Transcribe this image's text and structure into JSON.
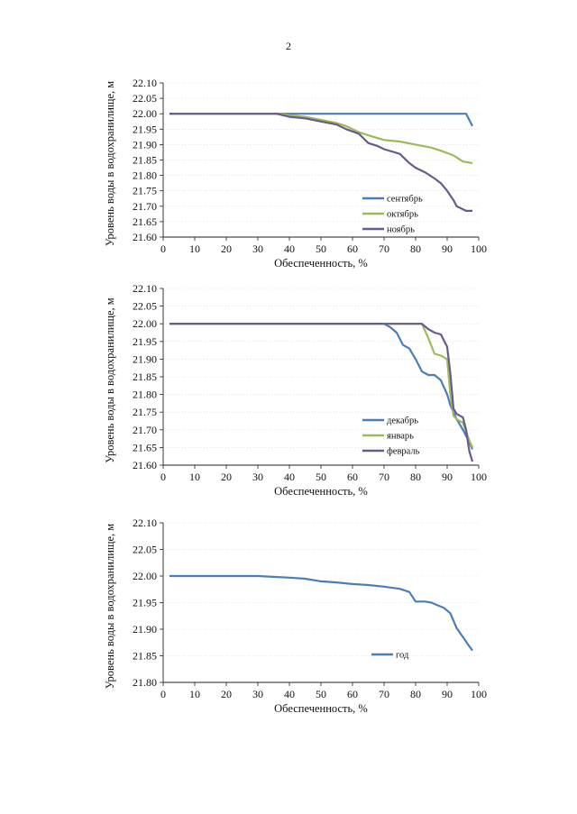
{
  "page": {
    "number": "2"
  },
  "chart_data": [
    {
      "type": "line",
      "title": "",
      "xlabel": "Обеспеченность, %",
      "ylabel": "Уровень воды в водохранилище, м",
      "xlim": [
        0,
        100
      ],
      "ylim": [
        21.6,
        22.1
      ],
      "xticks": [
        "0",
        "10",
        "20",
        "30",
        "40",
        "50",
        "60",
        "70",
        "80",
        "90",
        "100"
      ],
      "yticks": [
        "21.60",
        "21.65",
        "21.70",
        "21.75",
        "21.80",
        "21.85",
        "21.90",
        "21.95",
        "22.00",
        "22.05",
        "22.10"
      ],
      "grid": true,
      "legend_position": "lower-right",
      "series": [
        {
          "name": "сентябрь",
          "color": "#4a7ebb",
          "points": [
            [
              2,
              22.0
            ],
            [
              20,
              22.0
            ],
            [
              40,
              22.0
            ],
            [
              60,
              22.0
            ],
            [
              80,
              22.0
            ],
            [
              96,
              22.0
            ],
            [
              98,
              21.96
            ]
          ]
        },
        {
          "name": "октябрь",
          "color": "#9bbb59",
          "points": [
            [
              2,
              22.0
            ],
            [
              36,
              22.0
            ],
            [
              40,
              21.995
            ],
            [
              45,
              21.99
            ],
            [
              50,
              21.98
            ],
            [
              55,
              21.97
            ],
            [
              58,
              21.96
            ],
            [
              62,
              21.94
            ],
            [
              65,
              21.93
            ],
            [
              70,
              21.915
            ],
            [
              75,
              21.91
            ],
            [
              80,
              21.9
            ],
            [
              85,
              21.89
            ],
            [
              88,
              21.88
            ],
            [
              92,
              21.865
            ],
            [
              95,
              21.845
            ],
            [
              98,
              21.84
            ]
          ]
        },
        {
          "name": "ноябрь",
          "color": "#6a5a8c",
          "points": [
            [
              2,
              22.0
            ],
            [
              36,
              22.0
            ],
            [
              40,
              21.99
            ],
            [
              45,
              21.985
            ],
            [
              50,
              21.975
            ],
            [
              55,
              21.965
            ],
            [
              58,
              21.95
            ],
            [
              62,
              21.935
            ],
            [
              65,
              21.905
            ],
            [
              68,
              21.895
            ],
            [
              70,
              21.885
            ],
            [
              75,
              21.87
            ],
            [
              78,
              21.84
            ],
            [
              80,
              21.825
            ],
            [
              83,
              21.81
            ],
            [
              86,
              21.79
            ],
            [
              88,
              21.775
            ],
            [
              90,
              21.75
            ],
            [
              92,
              21.72
            ],
            [
              93,
              21.7
            ],
            [
              96,
              21.685
            ],
            [
              98,
              21.685
            ]
          ]
        }
      ]
    },
    {
      "type": "line",
      "title": "",
      "xlabel": "Обеспеченность, %",
      "ylabel": "Уровень воды в водохранилище, м",
      "xlim": [
        0,
        100
      ],
      "ylim": [
        21.6,
        22.1
      ],
      "xticks": [
        "0",
        "10",
        "20",
        "30",
        "40",
        "50",
        "60",
        "70",
        "80",
        "90",
        "100"
      ],
      "yticks": [
        "21.60",
        "21.65",
        "21.70",
        "21.75",
        "21.80",
        "21.85",
        "21.90",
        "21.95",
        "22.00",
        "22.05",
        "22.10"
      ],
      "grid": true,
      "legend_position": "lower-right",
      "series": [
        {
          "name": "декабрь",
          "color": "#4a7ebb",
          "points": [
            [
              2,
              22.0
            ],
            [
              70,
              22.0
            ],
            [
              72,
              21.99
            ],
            [
              74,
              21.975
            ],
            [
              76,
              21.94
            ],
            [
              78,
              21.93
            ],
            [
              80,
              21.9
            ],
            [
              82,
              21.865
            ],
            [
              84,
              21.855
            ],
            [
              86,
              21.855
            ],
            [
              88,
              21.84
            ],
            [
              90,
              21.8
            ],
            [
              91,
              21.77
            ],
            [
              93,
              21.73
            ],
            [
              95,
              21.7
            ],
            [
              97,
              21.665
            ],
            [
              98,
              21.645
            ]
          ]
        },
        {
          "name": "январь",
          "color": "#9bbb59",
          "points": [
            [
              2,
              22.0
            ],
            [
              82,
              22.0
            ],
            [
              84,
              21.96
            ],
            [
              86,
              21.915
            ],
            [
              88,
              21.91
            ],
            [
              90,
              21.9
            ],
            [
              91,
              21.8
            ],
            [
              92,
              21.74
            ],
            [
              93,
              21.73
            ],
            [
              95,
              21.72
            ],
            [
              97,
              21.67
            ],
            [
              98,
              21.65
            ]
          ]
        },
        {
          "name": "февраль",
          "color": "#6a5a8c",
          "points": [
            [
              2,
              22.0
            ],
            [
              82,
              22.0
            ],
            [
              84,
              21.985
            ],
            [
              86,
              21.975
            ],
            [
              88,
              21.97
            ],
            [
              90,
              21.935
            ],
            [
              91,
              21.86
            ],
            [
              92,
              21.76
            ],
            [
              93,
              21.745
            ],
            [
              95,
              21.735
            ],
            [
              96,
              21.7
            ],
            [
              97,
              21.64
            ],
            [
              98,
              21.61
            ]
          ]
        }
      ]
    },
    {
      "type": "line",
      "title": "",
      "xlabel": "Обеспеченность, %",
      "ylabel": "Уровень воды в водохранилище, м",
      "xlim": [
        0,
        100
      ],
      "ylim": [
        21.8,
        22.1
      ],
      "xticks": [
        "0",
        "10",
        "20",
        "30",
        "40",
        "50",
        "60",
        "70",
        "80",
        "90",
        "100"
      ],
      "yticks": [
        "21.80",
        "21.85",
        "21.90",
        "21.95",
        "22.00",
        "22.05",
        "22.10"
      ],
      "grid": true,
      "legend_position": "lower-right",
      "series": [
        {
          "name": "год",
          "color": "#4a7ebb",
          "points": [
            [
              2,
              22.0
            ],
            [
              10,
              22.0
            ],
            [
              20,
              22.0
            ],
            [
              30,
              22.0
            ],
            [
              40,
              21.997
            ],
            [
              45,
              21.995
            ],
            [
              50,
              21.99
            ],
            [
              55,
              21.988
            ],
            [
              60,
              21.985
            ],
            [
              65,
              21.983
            ],
            [
              70,
              21.98
            ],
            [
              75,
              21.976
            ],
            [
              78,
              21.97
            ],
            [
              80,
              21.952
            ],
            [
              83,
              21.952
            ],
            [
              85,
              21.95
            ],
            [
              87,
              21.945
            ],
            [
              89,
              21.94
            ],
            [
              91,
              21.93
            ],
            [
              93,
              21.902
            ],
            [
              95,
              21.885
            ],
            [
              97,
              21.868
            ],
            [
              98,
              21.86
            ]
          ]
        }
      ]
    }
  ]
}
